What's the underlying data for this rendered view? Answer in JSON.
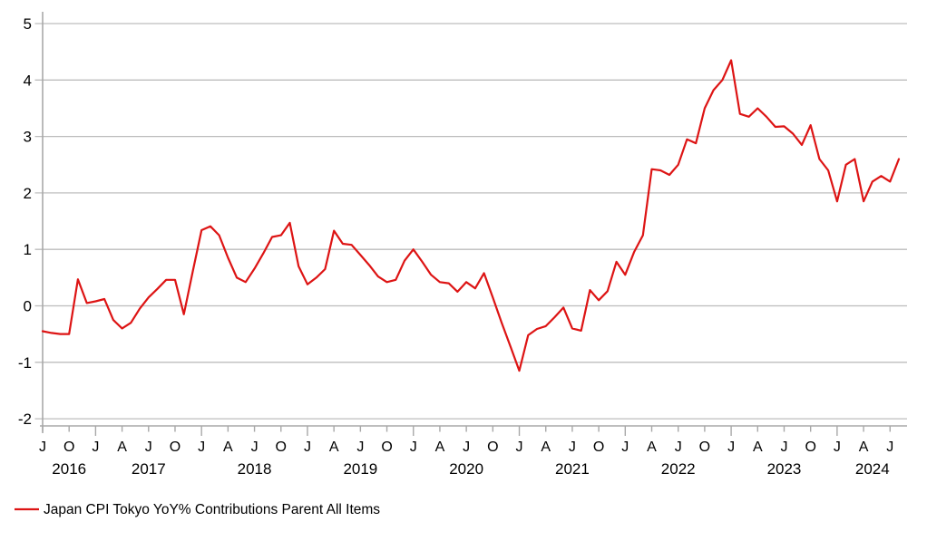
{
  "legend": {
    "label": "Japan CPI Tokyo YoY% Contributions Parent All Items",
    "swatch": "line-dash"
  },
  "colors": {
    "series_red": "#dd1414",
    "gridline_gray": "#bdbdbd",
    "axis_gray": "#a8a8a8",
    "text_black": "#000000",
    "background": "#ffffff"
  },
  "chart_data": {
    "type": "line",
    "title": "",
    "xlabel": "",
    "ylabel": "",
    "grid": true,
    "legend_position": "bottom-left",
    "ylim": [
      -2,
      5
    ],
    "yticks": [
      5,
      4,
      3,
      2,
      1,
      0,
      -1,
      -2
    ],
    "x_start": "2016-07",
    "x_end": "2024-08",
    "x_frequency": "monthly",
    "month_tick_step": 3,
    "month_tick_letters": [
      "J",
      "O",
      "J",
      "A",
      "J",
      "O",
      "J",
      "A",
      "J",
      "O",
      "J",
      "A",
      "J",
      "O",
      "J",
      "A",
      "J",
      "O",
      "J",
      "A",
      "J",
      "O",
      "J",
      "A",
      "J",
      "O",
      "J",
      "A",
      "J",
      "O",
      "J",
      "A",
      "J"
    ],
    "year_labels": [
      {
        "label": "2016",
        "center_month_index": 3
      },
      {
        "label": "2017",
        "center_month_index": 12
      },
      {
        "label": "2018",
        "center_month_index": 24
      },
      {
        "label": "2019",
        "center_month_index": 36
      },
      {
        "label": "2020",
        "center_month_index": 48
      },
      {
        "label": "2021",
        "center_month_index": 60
      },
      {
        "label": "2022",
        "center_month_index": 72
      },
      {
        "label": "2023",
        "center_month_index": 84
      },
      {
        "label": "2024",
        "center_month_index": 94
      }
    ],
    "series": [
      {
        "name": "Japan CPI Tokyo YoY% Contributions Parent All Items",
        "color": "#dd1414",
        "values": [
          -0.45,
          -0.48,
          -0.5,
          -0.5,
          0.47,
          0.05,
          0.08,
          0.12,
          -0.25,
          -0.4,
          -0.3,
          -0.05,
          0.15,
          0.3,
          0.46,
          0.46,
          -0.15,
          0.6,
          1.34,
          1.41,
          1.25,
          0.85,
          0.5,
          0.42,
          0.66,
          0.93,
          1.22,
          1.25,
          1.47,
          0.7,
          0.38,
          0.5,
          0.65,
          1.33,
          1.1,
          1.08,
          0.9,
          0.72,
          0.52,
          0.42,
          0.46,
          0.8,
          1.0,
          0.78,
          0.55,
          0.42,
          0.4,
          0.25,
          0.42,
          0.31,
          0.58,
          0.15,
          -0.3,
          -0.72,
          -1.15,
          -0.52,
          -0.41,
          -0.36,
          -0.2,
          -0.03,
          -0.4,
          -0.44,
          0.28,
          0.1,
          0.26,
          0.78,
          0.55,
          0.95,
          1.25,
          2.42,
          2.4,
          2.32,
          2.5,
          2.95,
          2.88,
          3.5,
          3.82,
          4.0,
          4.35,
          3.4,
          3.35,
          3.5,
          3.35,
          3.17,
          3.18,
          3.05,
          2.85,
          3.2,
          2.6,
          2.4,
          1.85,
          2.5,
          2.6,
          1.85,
          2.2,
          2.3,
          2.2,
          2.6
        ]
      }
    ]
  }
}
